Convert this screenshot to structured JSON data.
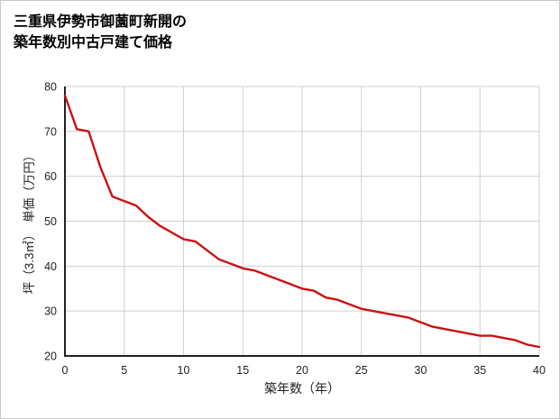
{
  "title": {
    "line1": "三重県伊勢市御薗町新開の",
    "line2": "築年数別中古戸建て価格"
  },
  "chart_data": {
    "type": "line",
    "title": "三重県伊勢市御薗町新開の築年数別中古戸建て価格",
    "xlabel": "築年数（年）",
    "ylabel": "坪（3.3㎡）　単価（万円）",
    "xlim": [
      0,
      40
    ],
    "ylim": [
      20,
      80
    ],
    "xticks": [
      0,
      5,
      10,
      15,
      20,
      25,
      30,
      35,
      40
    ],
    "yticks": [
      20,
      30,
      40,
      50,
      60,
      70,
      80
    ],
    "grid": true,
    "legend": "none",
    "line_color": "#cc1111",
    "x": [
      0,
      1,
      2,
      3,
      4,
      5,
      6,
      7,
      8,
      9,
      10,
      11,
      12,
      13,
      14,
      15,
      16,
      17,
      18,
      19,
      20,
      21,
      22,
      23,
      24,
      25,
      26,
      27,
      28,
      29,
      30,
      31,
      32,
      33,
      34,
      35,
      36,
      37,
      38,
      39,
      40
    ],
    "values": [
      78,
      70.5,
      70,
      62,
      55.5,
      54.5,
      53.5,
      51,
      49,
      47.5,
      46,
      45.5,
      43.5,
      41.5,
      40.5,
      39.5,
      39,
      38,
      37,
      36,
      35,
      34.5,
      33,
      32.5,
      31.5,
      30.5,
      30,
      29.5,
      29,
      28.5,
      27.5,
      26.5,
      26,
      25.5,
      25,
      24.5,
      24.5,
      24,
      23.5,
      22.5,
      22
    ]
  },
  "colors": {
    "grid": "#cfcfcf",
    "axis": "#222222",
    "tick_text": "#222222"
  }
}
